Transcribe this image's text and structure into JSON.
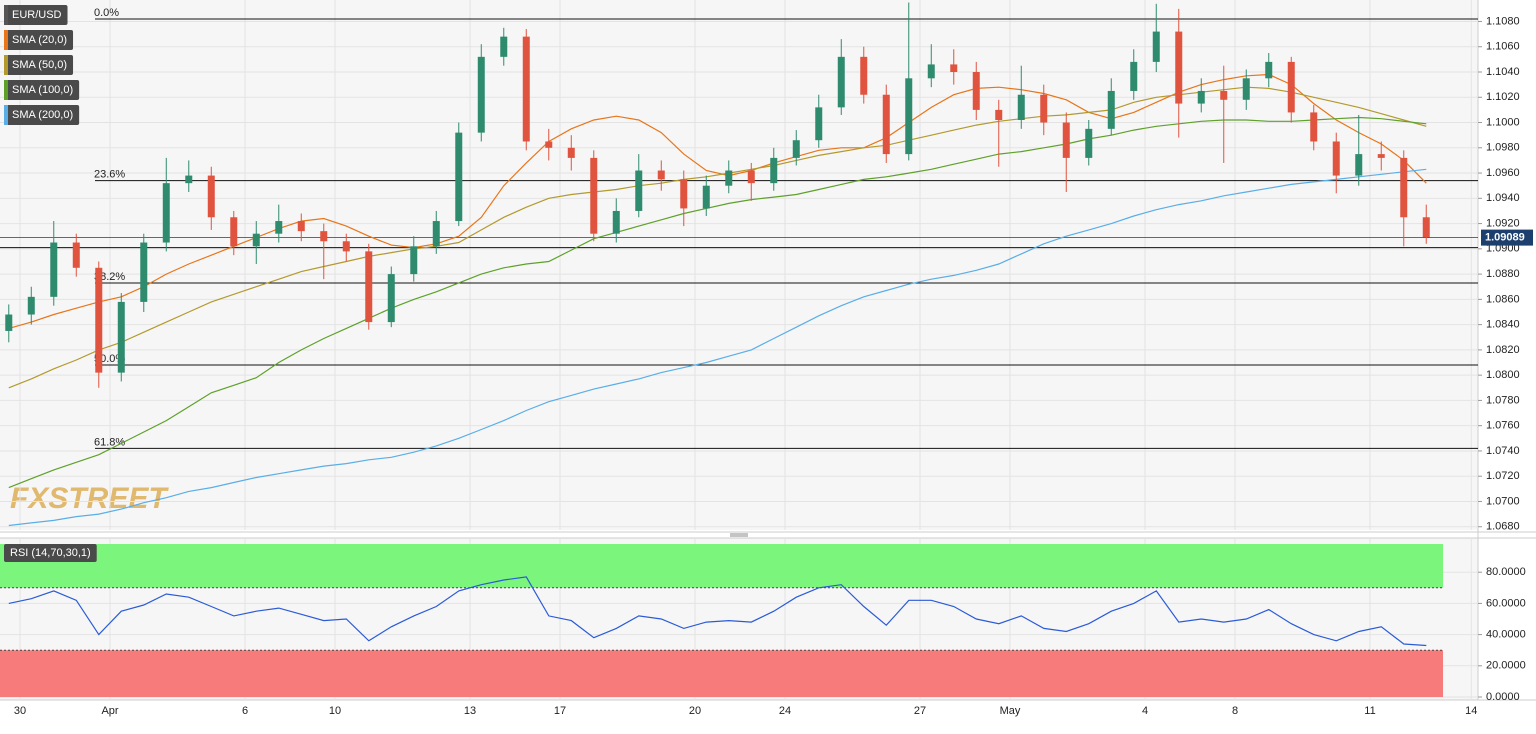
{
  "chart_data": [
    {
      "type": "candlestick",
      "symbol": "EUR/USD",
      "up_color": "#2e8b6e",
      "down_color": "#e0533f",
      "open": [
        1.0835,
        1.0848,
        1.0862,
        1.0905,
        1.0885,
        1.0802,
        1.0858,
        1.0905,
        1.0952,
        1.0958,
        1.0925,
        1.0902,
        1.0912,
        1.0922,
        1.0914,
        1.0906,
        1.0898,
        1.0842,
        1.088,
        1.0902,
        1.0922,
        1.0992,
        1.1052,
        1.1068,
        1.0985,
        1.098,
        1.0972,
        1.0912,
        1.093,
        1.0962,
        1.0955,
        1.0932,
        1.095,
        1.0962,
        1.0952,
        1.0972,
        1.0986,
        1.1012,
        1.1052,
        1.1022,
        1.0975,
        1.1035,
        1.1046,
        1.104,
        1.101,
        1.1002,
        1.1022,
        1.1,
        1.0972,
        1.0995,
        1.1025,
        1.1048,
        1.1072,
        1.1015,
        1.1025,
        1.1018,
        1.1035,
        1.1048,
        1.1008,
        1.0985,
        1.0958,
        1.0975,
        1.0972,
        1.0925
      ],
      "high": [
        1.0856,
        1.087,
        1.0922,
        1.0912,
        1.089,
        1.0865,
        1.0912,
        1.0972,
        1.097,
        1.0965,
        1.093,
        1.0922,
        1.0935,
        1.0928,
        1.092,
        1.0912,
        1.0904,
        1.0886,
        1.091,
        1.093,
        1.1,
        1.1062,
        1.1075,
        1.1074,
        1.0995,
        1.099,
        1.0978,
        1.094,
        1.0975,
        1.097,
        1.0962,
        1.0958,
        1.097,
        1.0968,
        1.098,
        1.0994,
        1.1022,
        1.1066,
        1.106,
        1.103,
        1.1095,
        1.1062,
        1.1058,
        1.1048,
        1.1018,
        1.1045,
        1.103,
        1.1008,
        1.1002,
        1.1035,
        1.1058,
        1.1094,
        1.109,
        1.1035,
        1.1045,
        1.1042,
        1.1055,
        1.1052,
        1.1014,
        1.0992,
        1.1006,
        1.0985,
        1.0978,
        1.0935
      ],
      "low": [
        1.0826,
        1.084,
        1.0855,
        1.0878,
        1.079,
        1.0795,
        1.085,
        1.0898,
        1.0945,
        1.0915,
        1.0895,
        1.0888,
        1.0905,
        1.0906,
        1.0876,
        1.089,
        1.0836,
        1.0838,
        1.0874,
        1.0896,
        1.0918,
        1.0985,
        1.1045,
        1.0978,
        1.097,
        1.0962,
        1.0906,
        1.0905,
        1.0925,
        1.0946,
        1.0918,
        1.0926,
        1.0944,
        1.0938,
        1.0946,
        1.0966,
        1.098,
        1.1006,
        1.1015,
        1.0968,
        1.097,
        1.1028,
        1.103,
        1.1002,
        1.0965,
        1.0995,
        1.099,
        1.0945,
        1.0966,
        1.099,
        1.1018,
        1.104,
        1.0988,
        1.1008,
        1.0968,
        1.101,
        1.1028,
        1.1,
        1.0978,
        1.0944,
        1.095,
        1.0962,
        1.0902,
        1.0904
      ],
      "close": [
        1.0848,
        1.0862,
        1.0905,
        1.0885,
        1.0802,
        1.0858,
        1.0905,
        1.0952,
        1.0958,
        1.0925,
        1.0902,
        1.0912,
        1.0922,
        1.0914,
        1.0906,
        1.0898,
        1.0842,
        1.088,
        1.0902,
        1.0922,
        1.0992,
        1.1052,
        1.1068,
        1.0985,
        1.098,
        1.0972,
        1.0912,
        1.093,
        1.0962,
        1.0955,
        1.0932,
        1.095,
        1.0962,
        1.0952,
        1.0972,
        1.0986,
        1.1012,
        1.1052,
        1.1022,
        1.0975,
        1.1035,
        1.1046,
        1.104,
        1.101,
        1.1002,
        1.1022,
        1.1,
        1.0972,
        1.0995,
        1.1025,
        1.1048,
        1.1072,
        1.1015,
        1.1025,
        1.1018,
        1.1035,
        1.1048,
        1.1008,
        1.0985,
        1.0958,
        1.0975,
        1.0972,
        1.0925,
        1.0909
      ],
      "series": [
        {
          "name": "SMA (20,0)",
          "color": "#e8751a",
          "values": [
            1.0837,
            1.0842,
            1.0848,
            1.0853,
            1.0858,
            1.0862,
            1.087,
            1.088,
            1.0888,
            1.0895,
            1.0902,
            1.0909,
            1.0916,
            1.0922,
            1.0924,
            1.0918,
            1.091,
            1.0903,
            1.0901,
            1.0904,
            1.091,
            1.0925,
            1.095,
            1.0968,
            1.0985,
            1.0995,
            1.1002,
            1.1005,
            1.1002,
            1.0992,
            1.0975,
            1.0962,
            1.0958,
            1.0962,
            1.0968,
            1.0973,
            1.0978,
            1.098,
            1.098,
            1.0988,
            1.1,
            1.1012,
            1.1022,
            1.1027,
            1.1028,
            1.1026,
            1.1023,
            1.1018,
            1.1008,
            1.1003,
            1.1008,
            1.1016,
            1.1024,
            1.103,
            1.1034,
            1.1037,
            1.1038,
            1.103,
            1.1015,
            1.1002,
            1.0992,
            1.0983,
            1.097,
            1.0952
          ]
        },
        {
          "name": "SMA (50,0)",
          "color": "#b39a2e",
          "values": [
            1.079,
            1.0797,
            1.0805,
            1.0812,
            1.082,
            1.0826,
            1.0834,
            1.0842,
            1.085,
            1.0858,
            1.0864,
            1.087,
            1.0876,
            1.0882,
            1.0886,
            1.089,
            1.0894,
            1.0897,
            1.09,
            1.0902,
            1.0905,
            1.0915,
            1.0925,
            1.0933,
            1.094,
            1.0943,
            1.0945,
            1.0947,
            1.095,
            1.0952,
            1.0955,
            1.0957,
            1.096,
            1.0963,
            1.0966,
            1.097,
            1.0974,
            1.0977,
            1.098,
            1.0982,
            1.0986,
            1.099,
            1.0994,
            1.0998,
            1.1001,
            1.1003,
            1.1005,
            1.1006,
            1.1008,
            1.101,
            1.1016,
            1.102,
            1.1022,
            1.1024,
            1.1026,
            1.1028,
            1.1027,
            1.1024,
            1.102,
            1.1016,
            1.1012,
            1.1007,
            1.1002,
            1.0997
          ]
        },
        {
          "name": "SMA (100,0)",
          "color": "#5ea12a",
          "values": [
            1.0711,
            1.0718,
            1.0725,
            1.0731,
            1.0737,
            1.0746,
            1.0755,
            1.0764,
            1.0775,
            1.0786,
            1.0792,
            1.0798,
            1.081,
            1.082,
            1.0829,
            1.0837,
            1.0845,
            1.0853,
            1.086,
            1.0866,
            1.0873,
            1.088,
            1.0885,
            1.0888,
            1.089,
            1.0899,
            1.0908,
            1.0913,
            1.0918,
            1.0923,
            1.0928,
            1.0932,
            1.0936,
            1.0939,
            1.0941,
            1.0943,
            1.0947,
            1.0951,
            1.0955,
            1.0957,
            1.096,
            1.0963,
            1.0967,
            1.0971,
            1.0975,
            1.0977,
            1.098,
            1.0983,
            1.0987,
            1.099,
            1.0994,
            1.0997,
            1.0999,
            1.1001,
            1.1002,
            1.1002,
            1.1001,
            1.1001,
            1.1002,
            1.1003,
            1.1004,
            1.1003,
            1.1001,
            1.0999
          ]
        },
        {
          "name": "SMA (200,0)",
          "color": "#5aaee6",
          "values": [
            1.0681,
            1.0683,
            1.0685,
            1.0688,
            1.069,
            1.0694,
            1.0699,
            1.0703,
            1.0708,
            1.0711,
            1.0715,
            1.0719,
            1.0722,
            1.0725,
            1.0728,
            1.073,
            1.0733,
            1.0735,
            1.0739,
            1.0744,
            1.075,
            1.0757,
            1.0764,
            1.0772,
            1.0779,
            1.0784,
            1.0789,
            1.0793,
            1.0797,
            1.0802,
            1.0806,
            1.081,
            1.0815,
            1.082,
            1.0829,
            1.0838,
            1.0847,
            1.0855,
            1.0862,
            1.0867,
            1.0872,
            1.0876,
            1.0879,
            1.0883,
            1.0888,
            1.0896,
            1.0904,
            1.091,
            1.0915,
            1.092,
            1.0926,
            1.0931,
            1.0935,
            1.0938,
            1.0942,
            1.0945,
            1.0948,
            1.0951,
            1.0953,
            1.0955,
            1.0957,
            1.0959,
            1.0961,
            1.0963
          ]
        }
      ],
      "ylim": [
        1.0679,
        1.1097
      ],
      "yticks": [
        {
          "value": 1.068,
          "label": "1.0680"
        },
        {
          "value": 1.07,
          "label": "1.0700"
        },
        {
          "value": 1.072,
          "label": "1.0720"
        },
        {
          "value": 1.074,
          "label": "1.0740"
        },
        {
          "value": 1.076,
          "label": "1.0760"
        },
        {
          "value": 1.078,
          "label": "1.0780"
        },
        {
          "value": 1.08,
          "label": "1.0800"
        },
        {
          "value": 1.082,
          "label": "1.0820"
        },
        {
          "value": 1.084,
          "label": "1.0840"
        },
        {
          "value": 1.086,
          "label": "1.0860"
        },
        {
          "value": 1.088,
          "label": "1.0880"
        },
        {
          "value": 1.09,
          "label": "1.0900"
        },
        {
          "value": 1.092,
          "label": "1.0920"
        },
        {
          "value": 1.094,
          "label": "1.0940"
        },
        {
          "value": 1.096,
          "label": "1.0960"
        },
        {
          "value": 1.098,
          "label": "1.0980"
        },
        {
          "value": 1.1,
          "label": "1.1000"
        },
        {
          "value": 1.102,
          "label": "1.1020"
        },
        {
          "value": 1.104,
          "label": "1.1040"
        },
        {
          "value": 1.106,
          "label": "1.1060"
        },
        {
          "value": 1.108,
          "label": "1.1080"
        }
      ],
      "xlim": [
        -0.39,
        65.3
      ],
      "xticks": [
        {
          "value": 0.5,
          "label": "30"
        },
        {
          "value": 4.5,
          "label": "Apr"
        },
        {
          "value": 10.5,
          "label": "6"
        },
        {
          "value": 14.5,
          "label": "10"
        },
        {
          "value": 20.5,
          "label": "13"
        },
        {
          "value": 24.5,
          "label": "17"
        },
        {
          "value": 30.5,
          "label": "20"
        },
        {
          "value": 34.5,
          "label": "24"
        },
        {
          "value": 40.5,
          "label": "27"
        },
        {
          "value": 44.5,
          "label": "May"
        },
        {
          "value": 50.5,
          "label": "4"
        },
        {
          "value": 54.5,
          "label": "8"
        },
        {
          "value": 60.5,
          "label": "11"
        },
        {
          "value": 65,
          "label": "14"
        }
      ],
      "fibonacci": [
        {
          "label": "0.0%",
          "value": 1.1082
        },
        {
          "label": "23.6%",
          "value": 1.0954
        },
        {
          "label": "38.2%",
          "value": 1.0873
        },
        {
          "label": "50.0%",
          "value": 1.0808
        },
        {
          "label": "61.8%",
          "value": 1.0742
        }
      ],
      "support_line": 1.0901,
      "last_price": 1.09089,
      "watermark": "FXSTREET",
      "grid": true
    },
    {
      "type": "line",
      "series": [
        {
          "name": "RSI (14,70,30,1)",
          "color": "#2a5bd7",
          "values": [
            60,
            63,
            68,
            62,
            40,
            55,
            59,
            66,
            64,
            58,
            52,
            55,
            57,
            53,
            49,
            50,
            36,
            45,
            52,
            58,
            68,
            72,
            75,
            77,
            52,
            49,
            38,
            44,
            52,
            50,
            44,
            48,
            49,
            48,
            55,
            64,
            70,
            72,
            58,
            46,
            62,
            62,
            58,
            50,
            47,
            52,
            44,
            42,
            47,
            55,
            60,
            68,
            48,
            50,
            48,
            50,
            56,
            47,
            40,
            36,
            42,
            45,
            34,
            33
          ]
        }
      ],
      "ylim": [
        0,
        100
      ],
      "yticks": [
        {
          "value": 0,
          "label": "0.0000"
        },
        {
          "value": 20,
          "label": "20.0000"
        },
        {
          "value": 40,
          "label": "40.0000"
        },
        {
          "value": 60,
          "label": "60.0000"
        },
        {
          "value": 80,
          "label": "80.0000"
        }
      ],
      "overbought": 70,
      "oversold": 30,
      "grid": true
    }
  ]
}
